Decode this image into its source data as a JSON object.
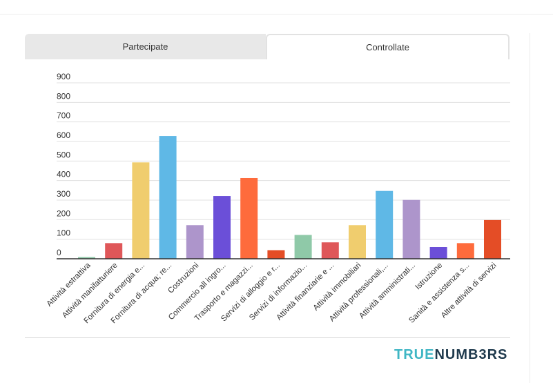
{
  "tabs": [
    {
      "label": "Partecipate",
      "active": false
    },
    {
      "label": "Controllate",
      "active": true
    }
  ],
  "brand": {
    "part1": "TRUE",
    "part2": "NUMB3RS"
  },
  "colors": {
    "brand_primary": "#3fb6c4",
    "brand_secondary": "#1f3a4d"
  },
  "chart_data": {
    "type": "bar",
    "ylim": [
      0,
      900
    ],
    "yticks": [
      0,
      100,
      200,
      300,
      400,
      500,
      600,
      700,
      800,
      900
    ],
    "grid": true,
    "categories": [
      "Attività estrattiva",
      "Attività manifatturiere",
      "Fornitura di energia e...",
      "Fornitura di acqua; re...",
      "Costruzioni",
      "Commercio all ingro...",
      "Trasporto e magazzi...",
      "Servizi di alloggio e r...",
      "Servizi di informazio...",
      "Attività finanziarie e ...",
      "Attività immobiliari",
      "Attività professionali,...",
      "Attività amministrati...",
      "Istruzione",
      "Sanità e assistenza s...",
      "Altre attività di servizi"
    ],
    "values": [
      9,
      80,
      493,
      628,
      172,
      321,
      413,
      44,
      122,
      84,
      172,
      347,
      301,
      60,
      80,
      198
    ],
    "colors": [
      "#8fc9a8",
      "#df5759",
      "#f0cd6e",
      "#5fb8e6",
      "#ad95cb",
      "#6b4fd8",
      "#fe6b3c",
      "#e44d26",
      "#8fc9a8",
      "#df5759",
      "#f0cd6e",
      "#5fb8e6",
      "#ad95cb",
      "#6b4fd8",
      "#fe6b3c",
      "#e44d26"
    ]
  }
}
